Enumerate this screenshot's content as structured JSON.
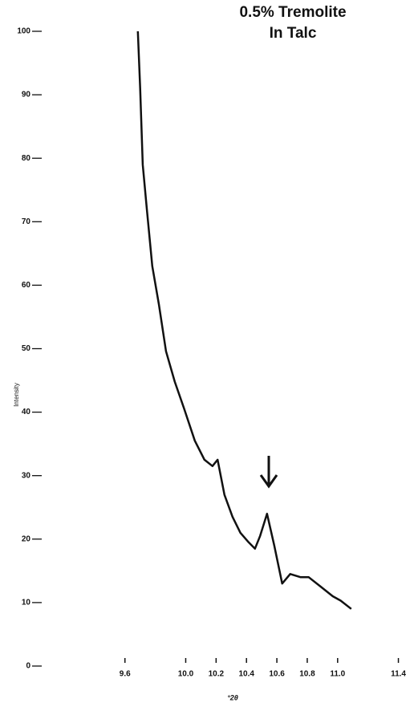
{
  "chart_data": {
    "type": "line",
    "title": [
      "0.5% Tremolite",
      "In Talc"
    ],
    "xlabel": "°2θ",
    "ylabel": "Intensity",
    "series": [
      {
        "name": "0.5% Tremolite In Talc",
        "color": "#111111",
        "x": [
          9.685,
          9.7,
          9.717,
          9.744,
          9.78,
          9.823,
          9.87,
          9.928,
          9.99,
          10.06,
          10.123,
          10.176,
          10.21,
          10.255,
          10.308,
          10.36,
          10.414,
          10.456,
          10.49,
          10.535,
          10.583,
          10.635,
          10.688,
          10.757,
          10.81,
          10.889,
          10.968,
          11.02,
          11.09
        ],
        "values": [
          100,
          91,
          79,
          72,
          63,
          57,
          49.6,
          44.8,
          40.5,
          35.5,
          32.5,
          31.5,
          32.5,
          27,
          23.5,
          21,
          19.5,
          18.5,
          20.5,
          24,
          19,
          13,
          14.5,
          14,
          14,
          12.5,
          11,
          10.3,
          9
        ]
      }
    ],
    "xlim": [
      9.2,
      11.45
    ],
    "xticks": [
      {
        "value": 9.6,
        "label": "9.6"
      },
      {
        "value": 10.0,
        "label": "10.0"
      },
      {
        "value": 10.2,
        "label": "10.2"
      },
      {
        "value": 10.4,
        "label": "10.4"
      },
      {
        "value": 10.6,
        "label": "10.6"
      },
      {
        "value": 10.8,
        "label": "10.8"
      },
      {
        "value": 11.0,
        "label": "11.0"
      },
      {
        "value": 11.4,
        "label": "11.4"
      }
    ],
    "ylim": [
      0,
      100
    ],
    "yticks": [
      0,
      10,
      20,
      30,
      40,
      50,
      60,
      70,
      80,
      90,
      100
    ],
    "grid": false
  }
}
